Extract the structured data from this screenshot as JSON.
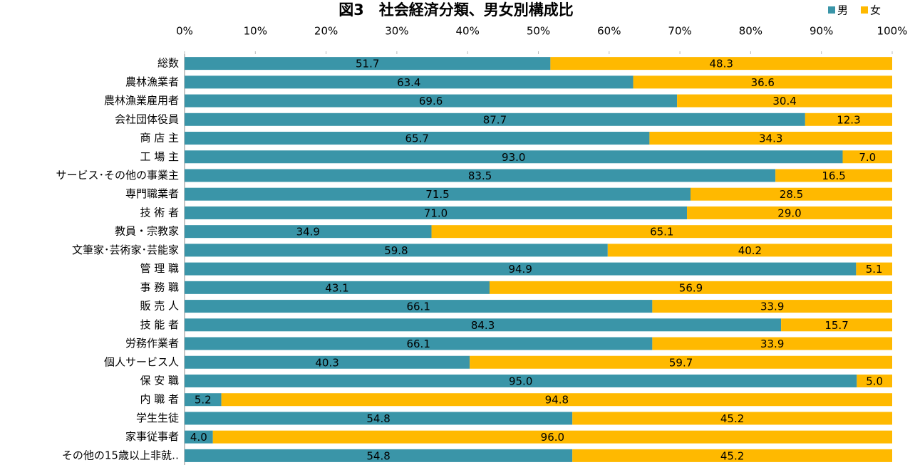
{
  "chart_data": {
    "type": "stacked_barh",
    "title": "図3　社会経済分類、男女別構成比",
    "categories": [
      "総数",
      "農林漁業者",
      "農林漁業雇用者",
      "会社団体役員",
      "商 店 主",
      "工 場 主",
      "サービス･その他の事業主",
      "専門職業者",
      "技 術 者",
      "教員・宗教家",
      "文筆家･芸術家･芸能家",
      "管 理 職",
      "事 務 職",
      "販 売 人",
      "技 能 者",
      "労務作業者",
      "個人サービス人",
      "保 安 職",
      "内 職 者",
      "学生生徒",
      "家事従事者",
      "その他の15歳以上非就‥"
    ],
    "series": [
      {
        "name": "男",
        "color": "#3a95a8",
        "values": [
          51.7,
          63.4,
          69.6,
          87.7,
          65.7,
          93.0,
          83.5,
          71.5,
          71.0,
          34.9,
          59.8,
          94.9,
          43.1,
          66.1,
          84.3,
          66.1,
          40.3,
          95.0,
          5.2,
          54.8,
          4.0,
          54.8
        ],
        "value_labels": [
          "51.7",
          "63.4",
          "69.6",
          "87.7",
          "65.7",
          "93.0",
          "83.5",
          "71.5",
          "71.0",
          "34.9",
          "59.8",
          "94.9",
          "43.1",
          "66.1",
          "84.3",
          "66.1",
          "40.3",
          "95.0",
          "5.2",
          "54.8",
          "4.0",
          "54.8"
        ]
      },
      {
        "name": "女",
        "color": "#ffb900",
        "values": [
          48.3,
          36.6,
          30.4,
          12.3,
          34.3,
          7.0,
          16.5,
          28.5,
          29.0,
          65.1,
          40.2,
          5.1,
          56.9,
          33.9,
          15.7,
          33.9,
          59.7,
          5.0,
          94.8,
          45.2,
          96.0,
          45.2
        ],
        "value_labels": [
          "48.3",
          "36.6",
          "30.4",
          "12.3",
          "34.3",
          "7.0",
          "16.5",
          "28.5",
          "29.0",
          "65.1",
          "40.2",
          "5.1",
          "56.9",
          "33.9",
          "15.7",
          "33.9",
          "59.7",
          "5.0",
          "94.8",
          "45.2",
          "96.0",
          "45.2"
        ]
      }
    ],
    "xlim": [
      0,
      100
    ],
    "xticks": [
      {
        "value": 0,
        "label": "0%"
      },
      {
        "value": 10,
        "label": "10%"
      },
      {
        "value": 20,
        "label": "20%"
      },
      {
        "value": 30,
        "label": "30%"
      },
      {
        "value": 40,
        "label": "40%"
      },
      {
        "value": 50,
        "label": "50%"
      },
      {
        "value": 60,
        "label": "60%"
      },
      {
        "value": 70,
        "label": "70%"
      },
      {
        "value": 80,
        "label": "80%"
      },
      {
        "value": 90,
        "label": "90%"
      },
      {
        "value": 100,
        "label": "100%"
      }
    ],
    "legend": "top right",
    "grid": false
  }
}
